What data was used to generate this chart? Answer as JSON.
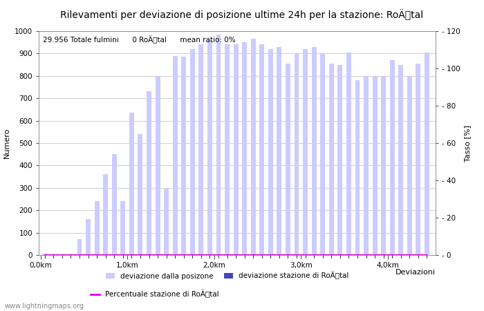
{
  "title": "Rilevamenti per deviazione di posizione ultime 24h per la stazione: RoÄtal",
  "ylabel_left": "Numero",
  "ylabel_right": "Tasso [%]",
  "xlabel": "Deviazioni",
  "annotation": "29.956 Totale fulmini      0 RoÄtal      mean ratio: 0%",
  "watermark": "www.lightningmaps.org",
  "legend_label1": "deviazione dalla posizone",
  "legend_label2": "deviazione stazione di RoÄtal",
  "legend_label3": "Percentuale stazione di RoÄtal",
  "bar_color_light": "#ccccff",
  "bar_color_dark": "#4444bb",
  "line_color": "#dd00dd",
  "background_color": "#ffffff",
  "grid_color": "#bbbbbb",
  "ylim_left": [
    0,
    1000
  ],
  "ylim_right": [
    0,
    120
  ],
  "bar_width": 0.055,
  "x_tick_positions": [
    0,
    1,
    2,
    3,
    4
  ],
  "x_tick_labels": [
    "0,0km",
    "1,0km",
    "2,0km",
    "3,0km",
    "4,0km"
  ],
  "y_ticks_left": [
    0,
    100,
    200,
    300,
    400,
    500,
    600,
    700,
    800,
    900,
    1000
  ],
  "y_ticks_right": [
    0,
    20,
    40,
    60,
    80,
    100,
    120
  ],
  "bar_x": [
    0.05,
    0.15,
    0.25,
    0.35,
    0.45,
    0.55,
    0.65,
    0.75,
    0.85,
    0.95,
    1.05,
    1.15,
    1.25,
    1.35,
    1.45,
    1.55,
    1.65,
    1.75,
    1.85,
    1.95,
    2.05,
    2.15,
    2.25,
    2.35,
    2.45,
    2.55,
    2.65,
    2.75,
    2.85,
    2.95,
    3.05,
    3.15,
    3.25,
    3.35,
    3.45,
    3.55,
    3.65,
    3.75,
    3.85,
    3.95,
    4.05,
    4.15,
    4.25,
    4.35,
    4.45
  ],
  "bar_heights": [
    5,
    2,
    2,
    2,
    70,
    160,
    240,
    360,
    450,
    240,
    635,
    540,
    730,
    800,
    295,
    890,
    885,
    920,
    940,
    960,
    985,
    940,
    940,
    950,
    965,
    940,
    920,
    930,
    855,
    900,
    920,
    930,
    900,
    855,
    850,
    905,
    780,
    800,
    800,
    800,
    870,
    850,
    800,
    855,
    905
  ],
  "station_bar_heights": [
    0,
    0,
    0,
    0,
    0,
    0,
    0,
    0,
    0,
    0,
    0,
    0,
    0,
    0,
    0,
    0,
    0,
    0,
    0,
    0,
    0,
    0,
    0,
    0,
    0,
    0,
    0,
    0,
    0,
    0,
    0,
    0,
    0,
    0,
    0,
    0,
    0,
    0,
    0,
    0,
    0,
    0,
    0,
    0,
    0
  ],
  "line_y": [
    0,
    0,
    0,
    0,
    0,
    0,
    0,
    0,
    0,
    0,
    0,
    0,
    0,
    0,
    0,
    0,
    0,
    0,
    0,
    0,
    0,
    0,
    0,
    0,
    0,
    0,
    0,
    0,
    0,
    0,
    0,
    0,
    0,
    0,
    0,
    0,
    0,
    0,
    0,
    0,
    0,
    0,
    0,
    0,
    0
  ],
  "title_fontsize": 10,
  "axis_fontsize": 8,
  "tick_fontsize": 7.5,
  "annotation_fontsize": 7.5
}
